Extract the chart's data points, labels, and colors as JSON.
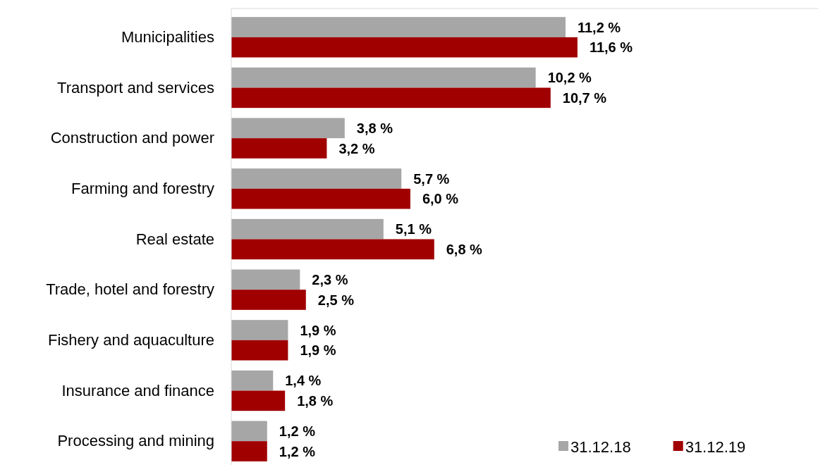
{
  "chart_data": {
    "type": "bar",
    "orientation": "horizontal",
    "categories": [
      "Municipalities",
      "Transport and services",
      "Construction and power",
      "Farming and forestry",
      "Real estate",
      "Trade, hotel and forestry",
      "Fishery and aquaculture",
      "Insurance and finance",
      "Processing and mining"
    ],
    "series": [
      {
        "name": "31.12.18",
        "color": "#a6a6a6",
        "values": [
          11.2,
          10.2,
          3.8,
          5.7,
          5.1,
          2.3,
          1.9,
          1.4,
          1.2
        ],
        "value_labels": [
          "11,2 %",
          "10,2 %",
          "3,8 %",
          "5,7 %",
          "5,1 %",
          "2,3 %",
          "1,9 %",
          "1,4 %",
          "1,2 %"
        ]
      },
      {
        "name": "31.12.19",
        "color": "#a00000",
        "values": [
          11.6,
          10.7,
          3.2,
          6.0,
          6.8,
          2.5,
          1.9,
          1.8,
          1.2
        ],
        "value_labels": [
          "11,6 %",
          "10,7 %",
          "3,2 %",
          "6,0 %",
          "6,8 %",
          "2,5 %",
          "1,9 %",
          "1,8 %",
          "1,2 %"
        ]
      }
    ],
    "legend": "bottom right"
  }
}
